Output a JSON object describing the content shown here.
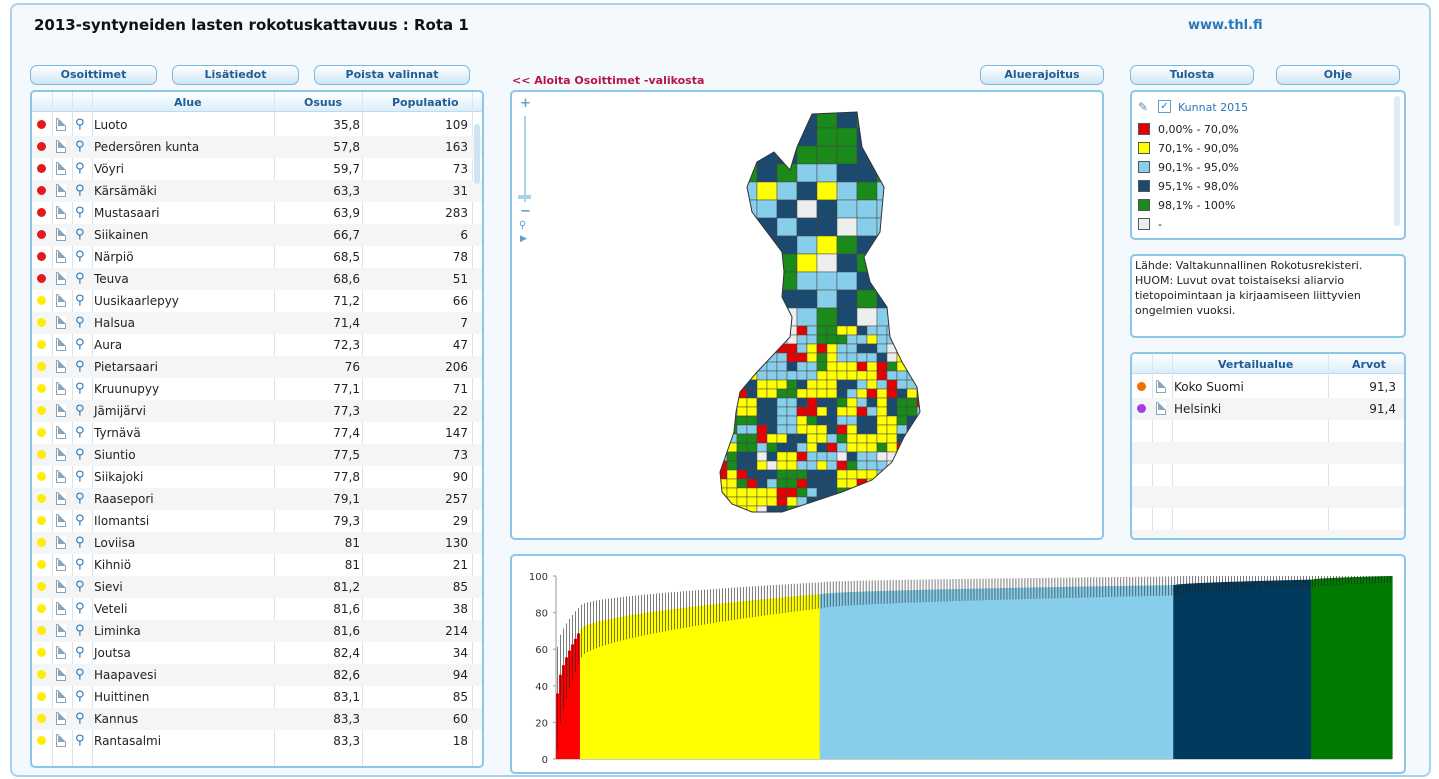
{
  "header": {
    "title": "2013-syntyneiden lasten rokotuskattavuus : Rota 1",
    "site": "www.thl.fi"
  },
  "toolbar": {
    "osoittimet": "Osoittimet",
    "lisatiedot": "Lisätiedot",
    "poista": "Poista valinnat",
    "back_link": "<< Aloita Osoittimet -valikosta",
    "aluerajoitus": "Aluerajoitus",
    "tulosta": "Tulosta",
    "ohje": "Ohje"
  },
  "table": {
    "columns": [
      "Alue",
      "Osuus",
      "Populaatio"
    ],
    "rows": [
      {
        "color": "#e31a1c",
        "name": "Luoto",
        "osuus": "35,8",
        "pop": "109"
      },
      {
        "color": "#e31a1c",
        "name": "Pedersören kunta",
        "osuus": "57,8",
        "pop": "163"
      },
      {
        "color": "#e31a1c",
        "name": "Vöyri",
        "osuus": "59,7",
        "pop": "73"
      },
      {
        "color": "#e31a1c",
        "name": "Kärsämäki",
        "osuus": "63,3",
        "pop": "31"
      },
      {
        "color": "#e31a1c",
        "name": "Mustasaari",
        "osuus": "63,9",
        "pop": "283"
      },
      {
        "color": "#e31a1c",
        "name": "Siikainen",
        "osuus": "66,7",
        "pop": "6"
      },
      {
        "color": "#e31a1c",
        "name": "Närpiö",
        "osuus": "68,5",
        "pop": "78"
      },
      {
        "color": "#e31a1c",
        "name": "Teuva",
        "osuus": "68,6",
        "pop": "51"
      },
      {
        "color": "#ffec00",
        "name": "Uusikaarlepyy",
        "osuus": "71,2",
        "pop": "66"
      },
      {
        "color": "#ffec00",
        "name": "Halsua",
        "osuus": "71,4",
        "pop": "7"
      },
      {
        "color": "#ffec00",
        "name": "Aura",
        "osuus": "72,3",
        "pop": "47"
      },
      {
        "color": "#ffec00",
        "name": "Pietarsaari",
        "osuus": "76",
        "pop": "206"
      },
      {
        "color": "#ffec00",
        "name": "Kruunupyy",
        "osuus": "77,1",
        "pop": "71"
      },
      {
        "color": "#ffec00",
        "name": "Jämijärvi",
        "osuus": "77,3",
        "pop": "22"
      },
      {
        "color": "#ffec00",
        "name": "Tyrnävä",
        "osuus": "77,4",
        "pop": "147"
      },
      {
        "color": "#ffec00",
        "name": "Siuntio",
        "osuus": "77,5",
        "pop": "73"
      },
      {
        "color": "#ffec00",
        "name": "Siikajoki",
        "osuus": "77,8",
        "pop": "90"
      },
      {
        "color": "#ffec00",
        "name": "Raasepori",
        "osuus": "79,1",
        "pop": "257"
      },
      {
        "color": "#ffec00",
        "name": "Ilomantsi",
        "osuus": "79,3",
        "pop": "29"
      },
      {
        "color": "#ffec00",
        "name": "Loviisa",
        "osuus": "81",
        "pop": "130"
      },
      {
        "color": "#ffec00",
        "name": "Kihniö",
        "osuus": "81",
        "pop": "21"
      },
      {
        "color": "#ffec00",
        "name": "Sievi",
        "osuus": "81,2",
        "pop": "85"
      },
      {
        "color": "#ffec00",
        "name": "Veteli",
        "osuus": "81,6",
        "pop": "38"
      },
      {
        "color": "#ffec00",
        "name": "Liminka",
        "osuus": "81,6",
        "pop": "214"
      },
      {
        "color": "#ffec00",
        "name": "Joutsa",
        "osuus": "82,4",
        "pop": "34"
      },
      {
        "color": "#ffec00",
        "name": "Haapavesi",
        "osuus": "82,6",
        "pop": "94"
      },
      {
        "color": "#ffec00",
        "name": "Huittinen",
        "osuus": "83,1",
        "pop": "85"
      },
      {
        "color": "#ffec00",
        "name": "Kannus",
        "osuus": "83,3",
        "pop": "60"
      },
      {
        "color": "#ffec00",
        "name": "Rantasalmi",
        "osuus": "83,3",
        "pop": "18"
      }
    ]
  },
  "map": {
    "zoom_in": "+",
    "zoom_out": "−"
  },
  "legend": {
    "title": "Kunnat 2015",
    "items": [
      {
        "color": "#e60000",
        "label": "0,00% - 70,0%"
      },
      {
        "color": "#ffff00",
        "label": "70,1% - 90,0%"
      },
      {
        "color": "#87ceeb",
        "label": "90,1% - 95,0%"
      },
      {
        "color": "#1a4a70",
        "label": "95,1% - 98,0%"
      },
      {
        "color": "#1a8a1a",
        "label": "98,1% - 100%"
      },
      {
        "color": "#eeeeee",
        "label": "-"
      }
    ]
  },
  "note": "Lähde: Valtakunnallinen Rokotusrekisteri. HUOM: Luvut ovat toistaiseksi aliarvio tietopoimintaan ja kirjaamiseen liittyvien ongelmien vuoksi.",
  "compare": {
    "columns": [
      "Vertailualue",
      "Arvot"
    ],
    "rows": [
      {
        "color": "#f07000",
        "name": "Koko Suomi",
        "value": "91,3"
      },
      {
        "color": "#a040e0",
        "name": "Helsinki",
        "value": "91,4"
      }
    ]
  },
  "chart_data": {
    "type": "bar",
    "ylim": [
      0,
      100
    ],
    "yticks": [
      0,
      20,
      40,
      60,
      80,
      100
    ],
    "groups": [
      {
        "color": "#ff0000",
        "count": 8,
        "from": 35.8,
        "to": 68.6
      },
      {
        "color": "#ffff00",
        "count": 80,
        "from": 71.2,
        "to": 90.0
      },
      {
        "color": "#87ceeb",
        "count": 118,
        "from": 90.1,
        "to": 95.0
      },
      {
        "color": "#003a5f",
        "count": 46,
        "from": 95.1,
        "to": 98.0
      },
      {
        "color": "#007a00",
        "count": 27,
        "from": 98.1,
        "to": 100
      }
    ]
  }
}
